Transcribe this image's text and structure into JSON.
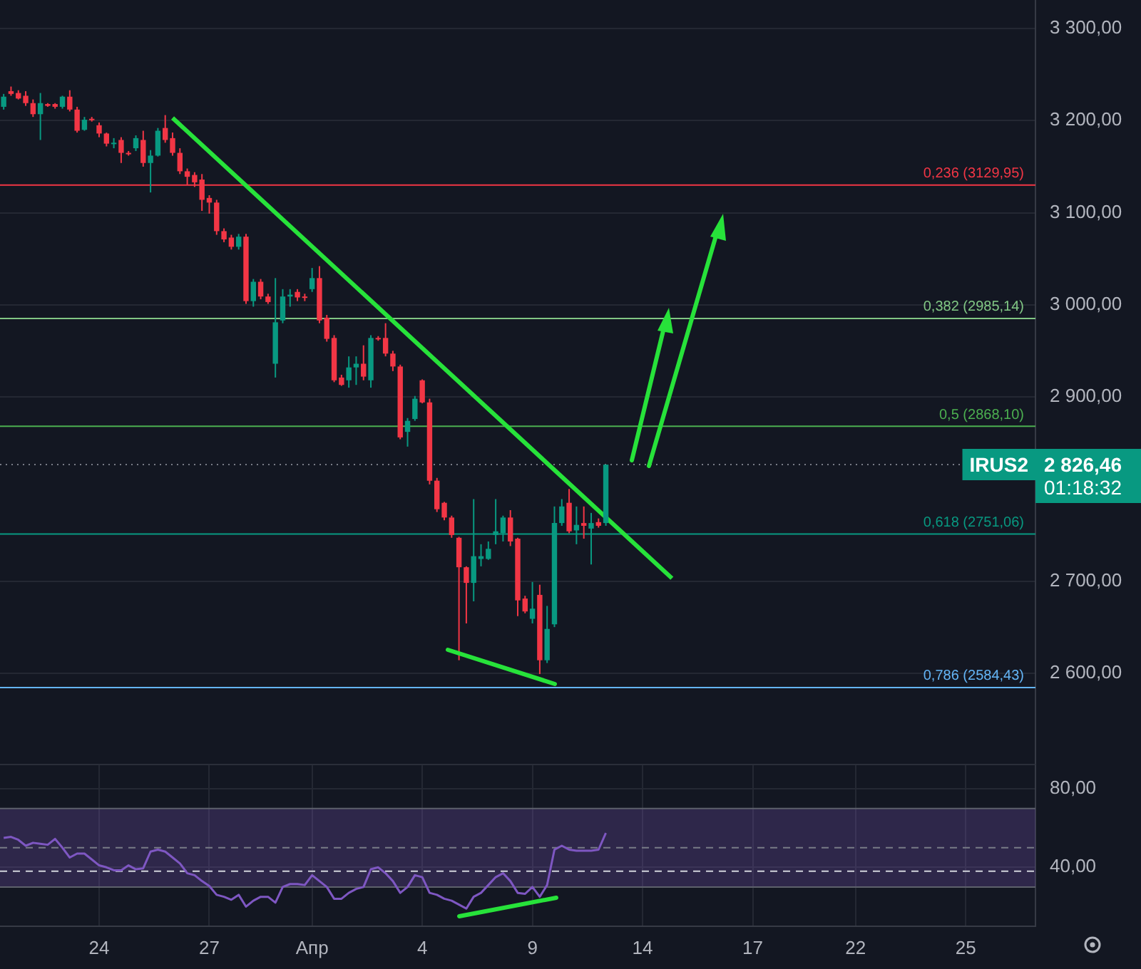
{
  "chart_data": [
    {
      "type": "candlestick",
      "categories": [
        null,
        null,
        null,
        null,
        null,
        null,
        null,
        null,
        null,
        null,
        null,
        null,
        null,
        null,
        null,
        null,
        null,
        null,
        null,
        null,
        null,
        null,
        null,
        null,
        null,
        null,
        null,
        null,
        null,
        null,
        null,
        null,
        null,
        null,
        null,
        null,
        null,
        null,
        null,
        null,
        null,
        null,
        null,
        null,
        null,
        null,
        null,
        null,
        null,
        null,
        null,
        null,
        null,
        null,
        null,
        null,
        null,
        null,
        null,
        null,
        null,
        null,
        null,
        null,
        null,
        null,
        null,
        null,
        null,
        null,
        null,
        null,
        null,
        null,
        null,
        null,
        null,
        null,
        null,
        null,
        null,
        null,
        null,
        null,
        null,
        null,
        null,
        null,
        null,
        null,
        null,
        null,
        null,
        null,
        null,
        null,
        null,
        null,
        null,
        null,
        null,
        null,
        null,
        null,
        null,
        null,
        null,
        null,
        null,
        null,
        null,
        null,
        null,
        null,
        null,
        null,
        null,
        null,
        null,
        null,
        null,
        null,
        null,
        null,
        null,
        null,
        null,
        null,
        null,
        null,
        null,
        null,
        null,
        null,
        null,
        null,
        null,
        null,
        null,
        null,
        null
      ],
      "ohlc": [
        [
          3215,
          3229,
          3212,
          3226
        ],
        [
          3232,
          3237,
          3227,
          3229
        ],
        [
          3230,
          3233,
          3223,
          3224
        ],
        [
          3227,
          3232,
          3216,
          3219
        ],
        [
          3219,
          3223,
          3204,
          3207
        ],
        [
          3207,
          3230,
          3179,
          3219
        ],
        [
          3218,
          3219,
          3215,
          3216
        ],
        [
          3218,
          3219,
          3213,
          3215
        ],
        [
          3215,
          3227,
          3213,
          3226
        ],
        [
          3226,
          3233,
          3210,
          3212
        ],
        [
          3212,
          3215,
          3187,
          3189
        ],
        [
          3190,
          3204,
          3189,
          3201
        ],
        [
          3202,
          3204,
          3199,
          3201
        ],
        [
          3195,
          3198,
          3182,
          3186
        ],
        [
          3186,
          3187,
          3172,
          3175
        ],
        [
          3175,
          3181,
          3170,
          3176
        ],
        [
          3179,
          3182,
          3154,
          3165
        ],
        [
          3165,
          3167,
          3162,
          3164
        ],
        [
          3170,
          3184,
          3167,
          3181
        ],
        [
          3179,
          3189,
          3150,
          3154
        ],
        [
          3154,
          3168,
          3122,
          3162
        ],
        [
          3162,
          3192,
          3161,
          3189
        ],
        [
          3192,
          3206,
          3176,
          3179
        ],
        [
          3181,
          3187,
          3162,
          3165
        ],
        [
          3165,
          3170,
          3142,
          3145
        ],
        [
          3145,
          3148,
          3130,
          3139
        ],
        [
          3141,
          3144,
          3128,
          3133
        ],
        [
          3136,
          3142,
          3102,
          3114
        ],
        [
          3116,
          3119,
          3099,
          3111
        ],
        [
          3111,
          3114,
          3076,
          3080
        ],
        [
          3080,
          3083,
          3068,
          3071
        ],
        [
          3073,
          3076,
          3060,
          3063
        ],
        [
          3063,
          3077,
          3060,
          3074
        ],
        [
          3074,
          3077,
          3001,
          3004
        ],
        [
          3004,
          3028,
          2998,
          3025
        ],
        [
          3025,
          3028,
          3006,
          3009
        ],
        [
          3009,
          3012,
          3001,
          3003
        ],
        [
          2936,
          3029,
          2921,
          2981
        ],
        [
          2983,
          3017,
          2980,
          3009
        ],
        [
          3009,
          3017,
          2998,
          3011
        ],
        [
          3014,
          3017,
          3004,
          3008
        ],
        [
          3009,
          3012,
          3004,
          3008
        ],
        [
          3017,
          3040,
          3014,
          3029
        ],
        [
          3029,
          3042,
          2980,
          2983
        ],
        [
          2986,
          2989,
          2960,
          2963
        ],
        [
          2964,
          2967,
          2916,
          2918
        ],
        [
          2921,
          2924,
          2912,
          2913
        ],
        [
          2918,
          2944,
          2910,
          2932
        ],
        [
          2932,
          2944,
          2913,
          2936
        ],
        [
          2936,
          2956,
          2918,
          2922
        ],
        [
          2918,
          2967,
          2910,
          2964
        ],
        [
          2964,
          2966,
          2961,
          2963
        ],
        [
          2964,
          2980,
          2944,
          2947
        ],
        [
          2947,
          2950,
          2928,
          2933
        ],
        [
          2933,
          2935,
          2854,
          2856
        ],
        [
          2862,
          2877,
          2846,
          2874
        ],
        [
          2876,
          2901,
          2874,
          2898
        ],
        [
          2918,
          2919,
          2893,
          2894
        ],
        [
          2894,
          2898,
          2805,
          2809
        ],
        [
          2809,
          2812,
          2775,
          2778
        ],
        [
          2785,
          2786,
          2766,
          2769
        ],
        [
          2769,
          2771,
          2747,
          2750
        ],
        [
          2747,
          2748,
          2614,
          2715
        ],
        [
          2715,
          2716,
          2654,
          2698
        ],
        [
          2698,
          2789,
          2678,
          2727
        ],
        [
          2724,
          2740,
          2716,
          2727
        ],
        [
          2724,
          2743,
          2723,
          2735
        ],
        [
          2750,
          2789,
          2740,
          2754
        ],
        [
          2752,
          2771,
          2743,
          2769
        ],
        [
          2769,
          2777,
          2738,
          2743
        ],
        [
          2746,
          2747,
          2662,
          2679
        ],
        [
          2681,
          2684,
          2665,
          2667
        ],
        [
          2659,
          2699,
          2654,
          2670
        ],
        [
          2685,
          2696,
          2599,
          2614
        ],
        [
          2614,
          2673,
          2611,
          2648
        ],
        [
          2653,
          2781,
          2650,
          2763
        ],
        [
          2763,
          2789,
          2760,
          2781
        ],
        [
          2785,
          2800,
          2752,
          2754
        ],
        [
          2755,
          2781,
          2740,
          2761
        ],
        [
          2763,
          2781,
          2746,
          2760
        ],
        [
          2757,
          2774,
          2718,
          2763
        ],
        [
          2764,
          2768,
          2758,
          2760
        ],
        [
          2763,
          2826.46,
          2760,
          2826.46
        ],
        null,
        null,
        null,
        null,
        null,
        null,
        null,
        null,
        null,
        null,
        null,
        null,
        null,
        null,
        null,
        null,
        null,
        null,
        null,
        null,
        null,
        null,
        null,
        null,
        null,
        null,
        null,
        null,
        null,
        null,
        null,
        null,
        null,
        null,
        null,
        null,
        null,
        null,
        null,
        null,
        null,
        null,
        null,
        null,
        null,
        null,
        null,
        null,
        null,
        null,
        null,
        null,
        null,
        null,
        null,
        null,
        null,
        null
      ],
      "colors": [
        "#089981",
        "#f23645",
        "#f23645",
        "#f23645",
        "#f23645",
        "#089981",
        "#f23645",
        "#f23645",
        "#089981",
        "#f23645",
        "#f23645",
        "#089981",
        "#f23645",
        "#f23645",
        "#f23645",
        "#089981",
        "#f23645",
        "#f23645",
        "#089981",
        "#f23645",
        "#089981",
        "#089981",
        "#f23645",
        "#f23645",
        "#f23645",
        "#f23645",
        "#f23645",
        "#f23645",
        "#f23645",
        "#f23645",
        "#f23645",
        "#f23645",
        "#089981",
        "#f23645",
        "#089981",
        "#f23645",
        "#f23645",
        "#089981",
        "#089981",
        "#089981",
        "#f23645",
        "#f23645",
        "#089981",
        "#f23645",
        "#f23645",
        "#f23645",
        "#f23645",
        "#089981",
        "#089981",
        "#f23645",
        "#089981",
        "#f23645",
        "#f23645",
        "#f23645",
        "#f23645",
        "#089981",
        "#089981",
        "#f23645",
        "#f23645",
        "#f23645",
        "#f23645",
        "#f23645",
        "#f23645",
        "#f23645",
        "#089981",
        "#089981",
        "#089981",
        "#089981",
        "#089981",
        "#f23645",
        "#f23645",
        "#f23645",
        "#089981",
        "#f23645",
        "#089981",
        "#089981",
        "#089981",
        "#f23645",
        "#089981",
        "#f23645",
        "#089981",
        "#f23645",
        "#089981",
        null,
        null,
        null,
        null,
        null,
        null,
        null,
        null,
        null,
        null,
        null,
        null,
        null,
        null,
        null,
        null,
        null,
        null,
        null,
        null,
        null,
        null,
        null,
        null,
        null,
        null,
        null,
        null,
        null,
        null,
        null,
        null,
        null,
        null,
        null,
        null,
        null,
        null,
        null,
        null,
        null,
        null,
        null,
        null,
        null,
        null,
        null,
        null,
        null,
        null,
        null,
        null,
        null,
        null,
        null,
        null,
        null,
        null
      ],
      "ylim": [
        2500,
        3331
      ],
      "yticks": [
        {
          "value": 2600,
          "label": "2 600,00"
        },
        {
          "value": 2700,
          "label": "2 700,00"
        },
        {
          "value": 2900,
          "label": "2 900,00"
        },
        {
          "value": 3000,
          "label": "3 000,00"
        },
        {
          "value": 3100,
          "label": "3 100,00"
        },
        {
          "value": 3200,
          "label": "3 200,00"
        },
        {
          "value": 3300,
          "label": "3 300,00"
        }
      ],
      "series": [
        {
          "type": "line",
          "color": "#27e23a",
          "values": [
            null,
            null,
            null,
            null,
            null,
            null,
            null,
            null,
            null,
            null,
            null,
            null,
            null,
            null,
            null,
            null,
            null,
            null,
            null,
            null,
            null,
            null,
            null,
            3203,
            null,
            null,
            null,
            null,
            null,
            null,
            null,
            null,
            null,
            null,
            null,
            null,
            null,
            null,
            null,
            null,
            null,
            null,
            null,
            null,
            null,
            null,
            null,
            null,
            null,
            null,
            null,
            null,
            null,
            null,
            null,
            null,
            null,
            null,
            null,
            null,
            null,
            null,
            null,
            null,
            null,
            null,
            null,
            null,
            null,
            null,
            null,
            null,
            null,
            null,
            null,
            null,
            null,
            null,
            null,
            null,
            null,
            null,
            null,
            null,
            null,
            null,
            null,
            null,
            null,
            null,
            null,
            2703,
            null,
            null,
            null,
            null,
            null,
            null,
            null,
            null,
            null,
            null,
            null,
            null,
            null,
            null,
            null,
            null,
            null,
            null,
            null,
            null,
            null,
            null,
            null,
            null,
            null,
            null,
            null,
            null,
            null,
            null,
            null,
            null,
            null,
            null,
            null,
            null,
            null,
            null,
            null,
            null,
            null,
            null,
            null,
            null,
            null,
            null,
            null,
            null,
            null
          ]
        }
      ],
      "grid": true,
      "tick_labels": "y",
      "ref_lines": [
        {
          "axis": "y",
          "value": 3129.95,
          "label": "0,236 (3129,95)",
          "color": "#f23645"
        },
        {
          "axis": "y",
          "value": 2985.14,
          "label": "0,382 (2985,14)",
          "color": "#81c784"
        },
        {
          "axis": "y",
          "value": 2868.1,
          "label": "0,5 (2868,10)",
          "color": "#4caf50"
        },
        {
          "axis": "y",
          "value": 2751.06,
          "label": "0,618 (2751,06)",
          "color": "#089981"
        },
        {
          "axis": "y",
          "value": 2584.43,
          "label": "0,786 (2584,43)",
          "color": "#64b5f6"
        },
        {
          "axis": "y",
          "value": 2826.46,
          "color": "#787b86",
          "line_style": "dotted"
        }
      ],
      "annotations": [
        {
          "text": "IRUS2",
          "y": 2826.46
        },
        "2 826,46",
        "01:18:32"
      ]
    },
    {
      "type": "line",
      "categories": [
        null,
        null,
        null,
        null,
        null,
        null,
        null,
        null,
        null,
        null,
        null,
        null,
        null,
        "24",
        null,
        null,
        null,
        null,
        null,
        null,
        null,
        null,
        null,
        null,
        null,
        null,
        null,
        null,
        "27",
        null,
        null,
        null,
        null,
        null,
        null,
        null,
        null,
        null,
        null,
        null,
        null,
        null,
        "Апр",
        null,
        null,
        null,
        null,
        null,
        null,
        null,
        null,
        null,
        null,
        null,
        null,
        null,
        null,
        "4",
        null,
        null,
        null,
        null,
        null,
        null,
        null,
        null,
        null,
        null,
        null,
        null,
        null,
        null,
        "9",
        null,
        null,
        null,
        null,
        null,
        null,
        null,
        null,
        null,
        null,
        null,
        null,
        null,
        null,
        "14",
        null,
        null,
        null,
        null,
        null,
        null,
        null,
        null,
        null,
        null,
        null,
        null,
        null,
        null,
        "17",
        null,
        null,
        null,
        null,
        null,
        null,
        null,
        null,
        null,
        null,
        null,
        null,
        null,
        "22",
        null,
        null,
        null,
        null,
        null,
        null,
        null,
        null,
        null,
        null,
        null,
        null,
        null,
        null,
        "25",
        null,
        null,
        null,
        null,
        null,
        null,
        null,
        null,
        null
      ],
      "series": [
        {
          "color": "#7e57c2",
          "values": [
            55,
            55.5,
            54,
            51,
            52.5,
            52,
            51.5,
            54.5,
            50,
            45,
            47,
            47,
            44,
            41,
            40,
            38.5,
            38.5,
            41,
            39,
            39.5,
            48,
            49,
            48,
            45,
            42,
            37,
            36,
            33,
            30.5,
            26,
            25,
            23.5,
            26,
            20,
            23,
            25,
            25,
            22,
            30,
            31.5,
            31.5,
            31,
            36,
            33,
            30,
            24,
            24,
            27,
            29,
            30,
            39,
            40,
            37,
            33,
            27,
            30,
            36,
            35,
            27,
            26,
            24,
            23,
            21,
            19,
            25,
            27,
            31,
            35,
            37,
            33,
            27,
            26.5,
            30,
            25,
            31,
            49,
            51,
            49,
            48.5,
            48.5,
            48.5,
            49,
            57.5,
            null,
            null,
            null,
            null,
            null,
            null,
            null,
            null,
            null,
            null,
            null,
            null,
            null,
            null,
            null,
            null,
            null,
            null,
            null,
            null,
            null,
            null,
            null,
            null,
            null,
            null,
            null,
            null,
            null,
            null,
            null,
            null,
            null,
            null,
            null,
            null,
            null,
            null,
            null,
            null,
            null,
            null,
            null,
            null,
            null,
            null,
            null,
            null,
            null,
            null,
            null,
            null,
            null,
            null,
            null,
            null,
            null,
            null
          ]
        }
      ],
      "ylim": [
        10,
        92
      ],
      "yticks": [
        {
          "value": 40,
          "label": "40,00"
        },
        {
          "value": 80,
          "label": "80,00"
        }
      ],
      "grid": true,
      "bands": [
        {
          "axis": "y",
          "from": 30,
          "to": 70,
          "color": "#7e57c2"
        }
      ],
      "ref_lines": [
        {
          "axis": "y",
          "value": 70,
          "color": "#5d606b"
        },
        {
          "axis": "y",
          "value": 30,
          "color": "#5d606b"
        },
        {
          "axis": "y",
          "value": 50,
          "color": "#787b86",
          "line_style": "dashed"
        },
        {
          "axis": "y",
          "value": 38,
          "color": "#d1d4dc",
          "line_style": "dashed"
        }
      ]
    }
  ]
}
